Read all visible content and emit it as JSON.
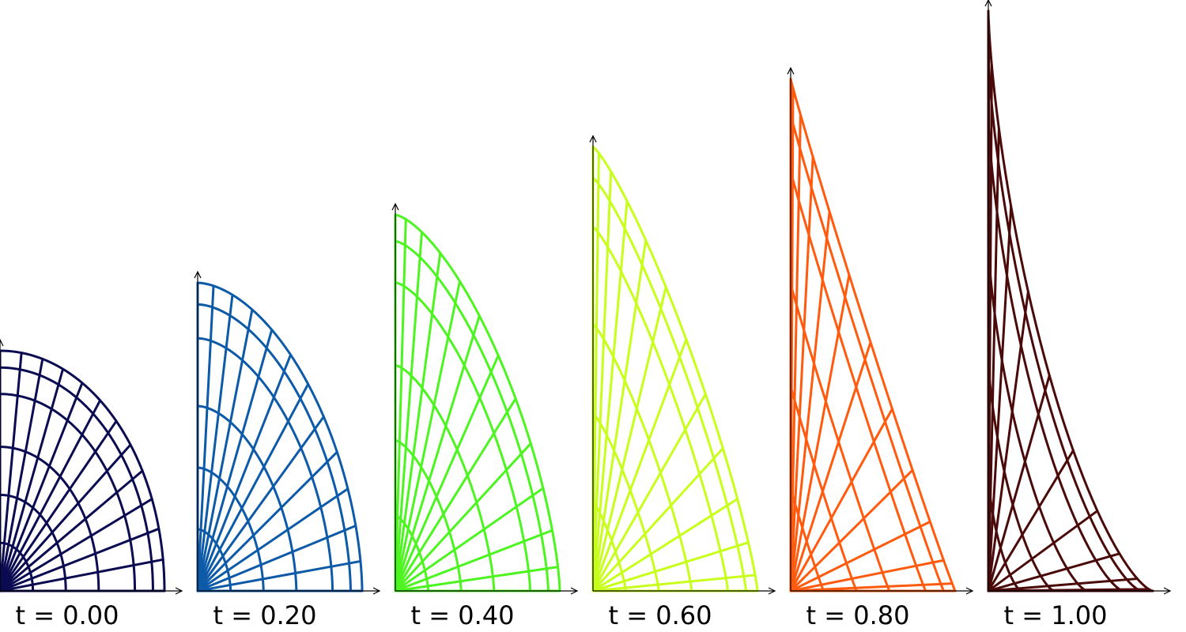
{
  "figure": {
    "panels": [
      {
        "label": "t = 0.00",
        "t": 0.0,
        "color": "#0b0b52"
      },
      {
        "label": "t = 0.20",
        "t": 0.2,
        "color": "#0d5aa8"
      },
      {
        "label": "t = 0.40",
        "t": 0.4,
        "color": "#4cf51f"
      },
      {
        "label": "t = 0.60",
        "t": 0.6,
        "color": "#c8ff1a"
      },
      {
        "label": "t = 0.80",
        "t": 0.8,
        "color": "#ff5a0d"
      },
      {
        "label": "t = 1.00",
        "t": 1.0,
        "color": "#4a0a0a"
      }
    ],
    "mesh": {
      "radial_levels": [
        0.2,
        0.4,
        0.6,
        0.82,
        0.93,
        1.0
      ],
      "angular_divisions": 12
    }
  }
}
